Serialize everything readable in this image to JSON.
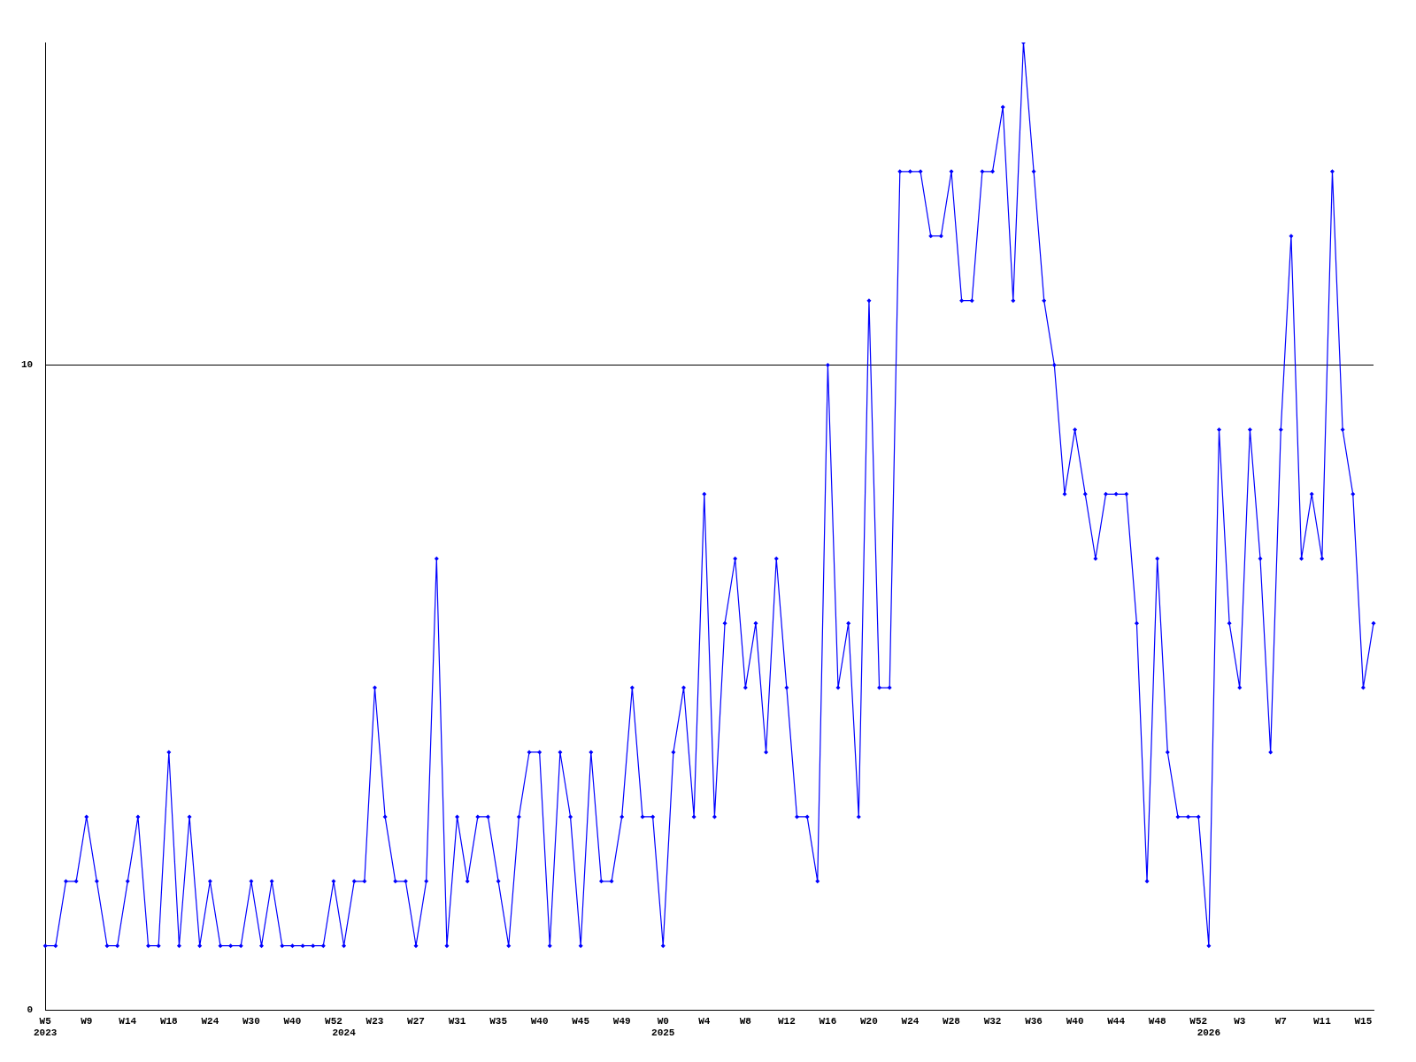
{
  "chart_data": {
    "type": "line",
    "categories": [
      "W5\n2023",
      null,
      null,
      null,
      "W9",
      null,
      null,
      null,
      "W14",
      null,
      null,
      null,
      "W18",
      null,
      null,
      null,
      "W24",
      null,
      null,
      null,
      "W30",
      null,
      null,
      null,
      "W40",
      null,
      null,
      null,
      "W52",
      "\n2024",
      null,
      null,
      "W23",
      null,
      null,
      null,
      "W27",
      null,
      null,
      null,
      "W31",
      null,
      null,
      null,
      "W35",
      null,
      null,
      null,
      "W40",
      null,
      null,
      null,
      "W45",
      null,
      null,
      null,
      "W49",
      null,
      null,
      null,
      "W0\n2025",
      null,
      null,
      null,
      "W4",
      null,
      null,
      null,
      "W8",
      null,
      null,
      null,
      "W12",
      null,
      null,
      null,
      "W16",
      null,
      null,
      null,
      "W20",
      null,
      null,
      null,
      "W24",
      null,
      null,
      null,
      "W28",
      null,
      null,
      null,
      "W32",
      null,
      null,
      null,
      "W36",
      null,
      null,
      null,
      "W40",
      null,
      null,
      null,
      "W44",
      null,
      null,
      null,
      "W48",
      null,
      null,
      null,
      "W52",
      "\n2026",
      null,
      null,
      "W3",
      null,
      null,
      null,
      "W7",
      null,
      null,
      null,
      "W11",
      null,
      null,
      null,
      "W15",
      null
    ],
    "series": [
      {
        "color": "#0000ff",
        "values": [
          1,
          1,
          2,
          2,
          3,
          2,
          1,
          1,
          2,
          3,
          1,
          1,
          4,
          1,
          3,
          1,
          2,
          1,
          1,
          1,
          2,
          1,
          2,
          1,
          1,
          1,
          1,
          1,
          2,
          1,
          2,
          2,
          5,
          3,
          2,
          2,
          1,
          2,
          7,
          1,
          3,
          2,
          3,
          3,
          2,
          1,
          3,
          4,
          4,
          1,
          4,
          3,
          1,
          4,
          2,
          2,
          3,
          5,
          3,
          3,
          1,
          4,
          5,
          3,
          8,
          3,
          6,
          7,
          5,
          6,
          4,
          7,
          5,
          3,
          3,
          2,
          10,
          5,
          6,
          3,
          11,
          5,
          5,
          13,
          13,
          13,
          12,
          12,
          13,
          11,
          11,
          13,
          13,
          14,
          11,
          15,
          13,
          11,
          10,
          8,
          9,
          8,
          7,
          8,
          8,
          8,
          6,
          2,
          7,
          4,
          3,
          3,
          3,
          1,
          9,
          6,
          5,
          9,
          7,
          4,
          9,
          12,
          7,
          8,
          7,
          13,
          9,
          8,
          5,
          6
        ]
      }
    ],
    "ylim": [
      0,
      15
    ],
    "yticks": [
      0,
      10
    ],
    "grid": "y",
    "marker": "diamond",
    "line_style": "solid",
    "legend": false
  }
}
